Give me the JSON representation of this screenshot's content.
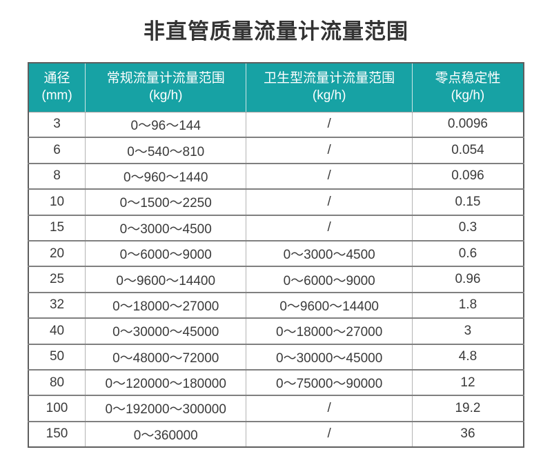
{
  "title": "非直管质量流量计流量范围",
  "colors": {
    "header_bg": "#17a2a4",
    "header_text": "#ffffff",
    "body_text": "#3a3a3a",
    "outer_border": "#5e5e5e",
    "row_border": "#7f7f7f",
    "col_border": "#b3b3b3"
  },
  "chart_data": {
    "type": "table",
    "title": "非直管质量流量计流量范围",
    "columns": [
      {
        "label": "通径",
        "unit": "(mm)"
      },
      {
        "label": "常规流量计流量范围",
        "unit": "(kg/h)"
      },
      {
        "label": "卫生型流量计流量范围",
        "unit": "(kg/h)"
      },
      {
        "label": "零点稳定性",
        "unit": "(kg/h)"
      }
    ],
    "rows": [
      [
        "3",
        "0～96～144",
        "/",
        "0.0096"
      ],
      [
        "6",
        "0～540～810",
        "/",
        "0.054"
      ],
      [
        "8",
        "0～960～1440",
        "/",
        "0.096"
      ],
      [
        "10",
        "0～1500～2250",
        "/",
        "0.15"
      ],
      [
        "15",
        "0～3000～4500",
        "/",
        "0.3"
      ],
      [
        "20",
        "0～6000～9000",
        "0～3000～4500",
        "0.6"
      ],
      [
        "25",
        "0～9600～14400",
        "0～6000～9000",
        "0.96"
      ],
      [
        "32",
        "0～18000～27000",
        "0～9600～14400",
        "1.8"
      ],
      [
        "40",
        "0～30000～45000",
        "0～18000～27000",
        "3"
      ],
      [
        "50",
        "0～48000～72000",
        "0～30000～45000",
        "4.8"
      ],
      [
        "80",
        "0～120000～180000",
        "0～75000～90000",
        "12"
      ],
      [
        "100",
        "0～192000～300000",
        "/",
        "19.2"
      ],
      [
        "150",
        "0～360000",
        "/",
        "36"
      ]
    ]
  }
}
